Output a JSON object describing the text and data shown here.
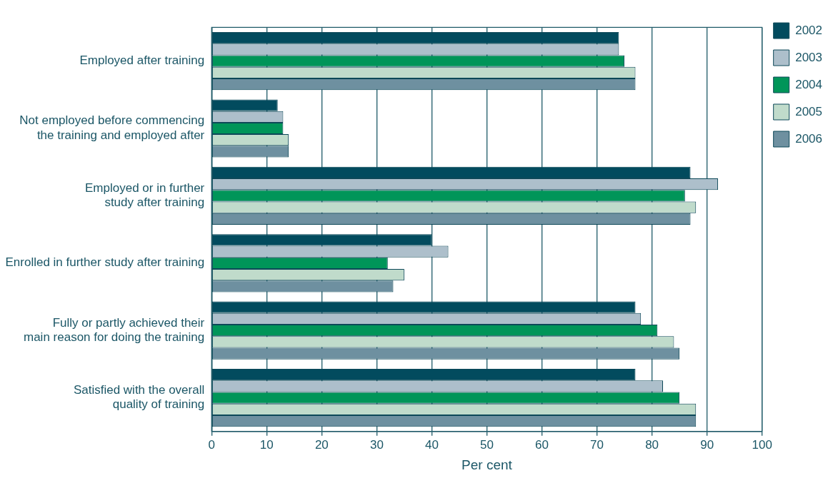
{
  "chart_data": {
    "type": "bar",
    "orientation": "horizontal",
    "xlabel": "Per cent",
    "categories": [
      "Employed after training",
      "Not employed before commencing the training and employed after",
      "Employed or in further study after training",
      "Enrolled in further study after training",
      "Fully or partly achieved their main reason for doing the training",
      "Satisfied with the overall quality of training"
    ],
    "series": [
      {
        "name": "2002",
        "color": "#024b5e",
        "values": [
          74,
          12,
          87,
          40,
          77,
          77
        ]
      },
      {
        "name": "2003",
        "color": "#adbfcb",
        "values": [
          74,
          13,
          92,
          43,
          78,
          82
        ]
      },
      {
        "name": "2004",
        "color": "#009559",
        "values": [
          75,
          13,
          86,
          32,
          81,
          85
        ]
      },
      {
        "name": "2005",
        "color": "#c0dbcb",
        "values": [
          77,
          14,
          88,
          35,
          84,
          88
        ]
      },
      {
        "name": "2006",
        "color": "#6e90a0",
        "values": [
          77,
          14,
          87,
          33,
          85,
          88
        ]
      }
    ],
    "xlim": [
      0,
      100
    ],
    "xticks": [
      0,
      10,
      20,
      30,
      40,
      50,
      60,
      70,
      80,
      90,
      100
    ],
    "grid": "x",
    "legend": "top right"
  }
}
